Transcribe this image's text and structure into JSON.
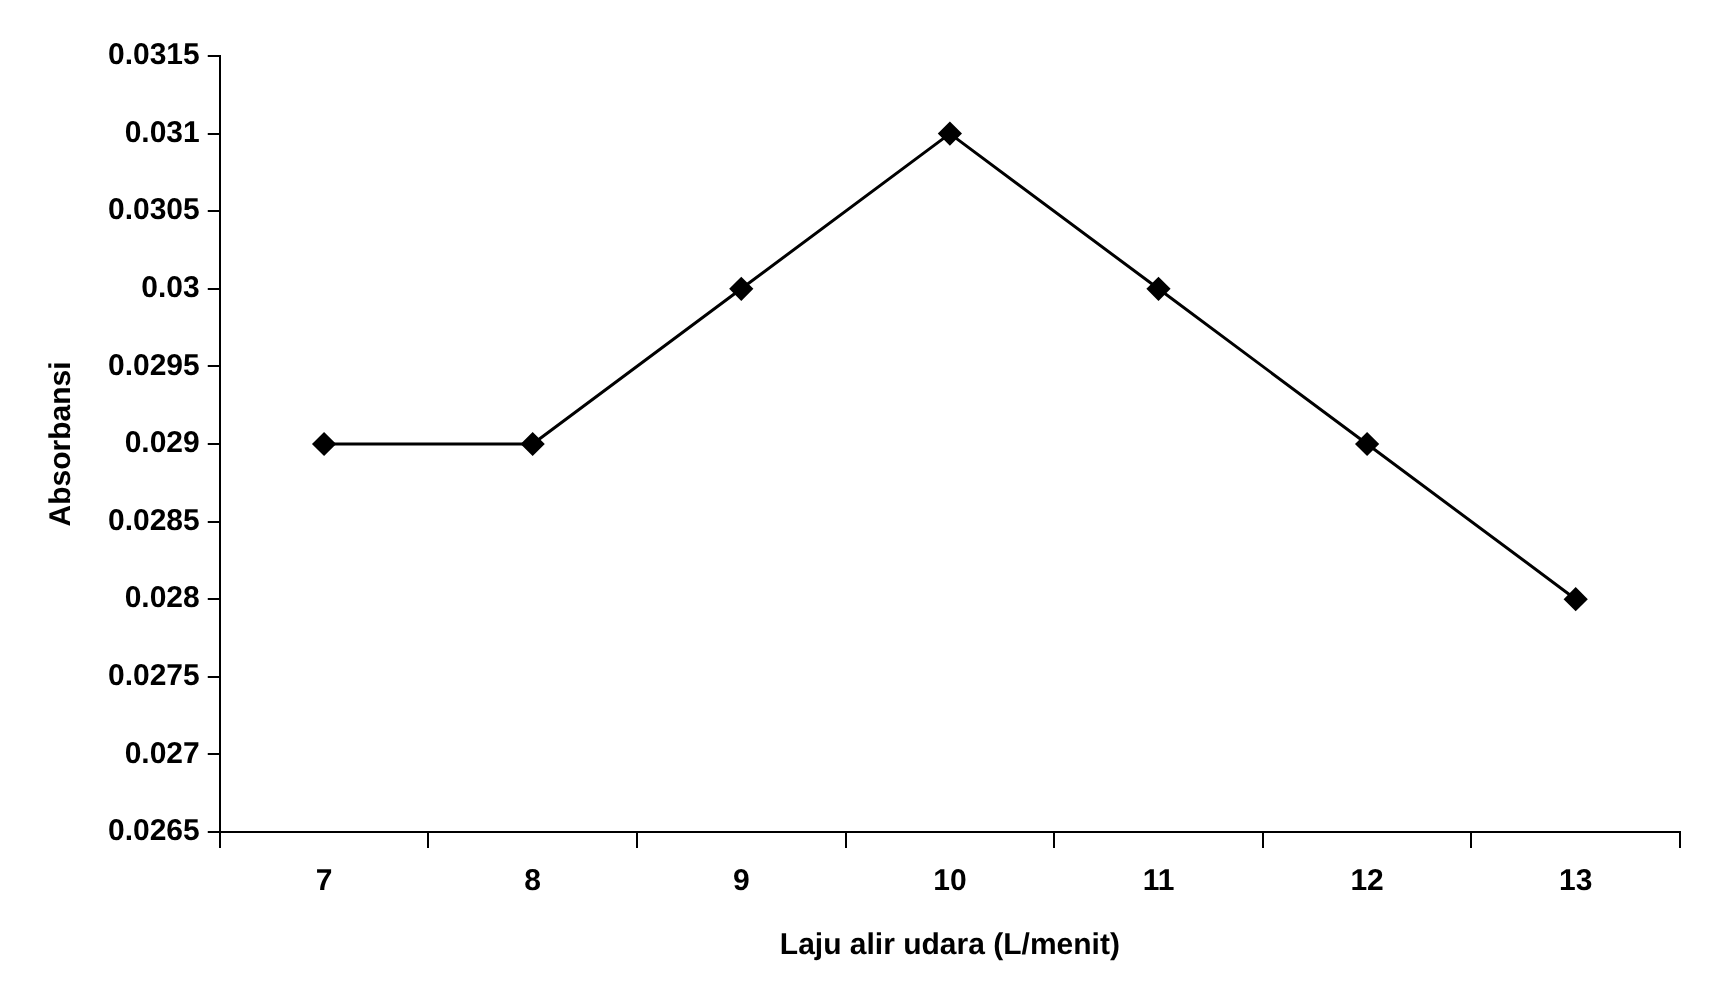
{
  "chart_data": {
    "type": "line",
    "xlabel": "Laju alir udara (L/menit)",
    "ylabel": "Absorbansi",
    "categories": [
      "7",
      "8",
      "9",
      "10",
      "11",
      "12",
      "13"
    ],
    "series": [
      {
        "color": "#000000",
        "values": [
          0.029,
          0.029,
          0.03,
          0.031,
          0.03,
          0.029,
          0.028
        ]
      }
    ],
    "ylim": [
      0.0265,
      0.0315
    ],
    "yticks": [
      0.0265,
      0.027,
      0.0275,
      0.028,
      0.0285,
      0.029,
      0.0295,
      0.03,
      0.0305,
      0.031,
      0.0315
    ],
    "grid": false,
    "legend": false,
    "marker": "diamond",
    "line_style": "solid"
  }
}
